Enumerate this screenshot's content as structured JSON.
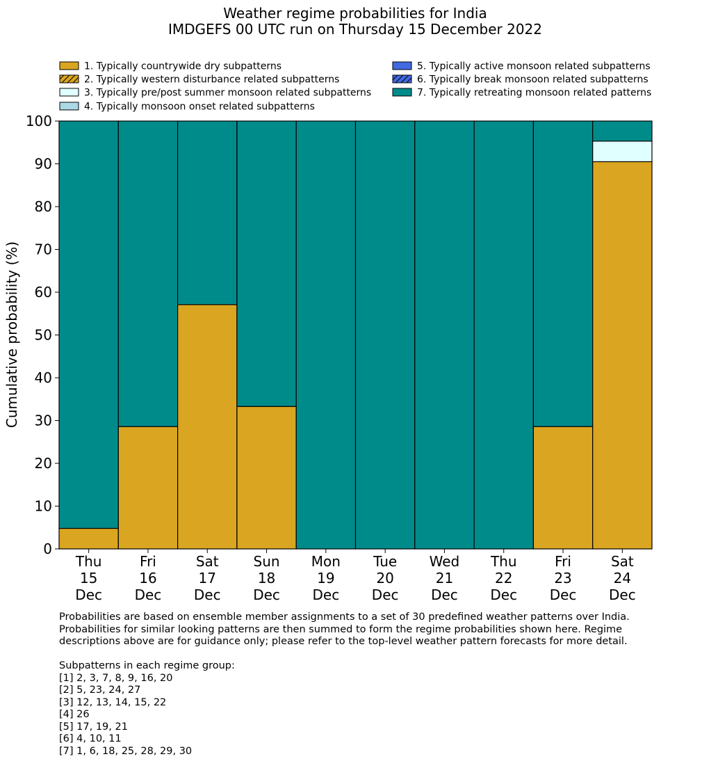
{
  "chart_data": {
    "type": "bar",
    "stacked": true,
    "title": "Weather regime probabilities for India",
    "subtitle": "IMDGEFS 00 UTC run on Thursday 15 December 2022",
    "ylabel": "Cumulative probability (%)",
    "xlabel": "",
    "ylim": [
      0,
      100
    ],
    "yticks": [
      0,
      10,
      20,
      30,
      40,
      50,
      60,
      70,
      80,
      90,
      100
    ],
    "categories": [
      [
        "Thu",
        "15",
        "Dec"
      ],
      [
        "Fri",
        "16",
        "Dec"
      ],
      [
        "Sat",
        "17",
        "Dec"
      ],
      [
        "Sun",
        "18",
        "Dec"
      ],
      [
        "Mon",
        "19",
        "Dec"
      ],
      [
        "Tue",
        "20",
        "Dec"
      ],
      [
        "Wed",
        "21",
        "Dec"
      ],
      [
        "Thu",
        "22",
        "Dec"
      ],
      [
        "Fri",
        "23",
        "Dec"
      ],
      [
        "Sat",
        "24",
        "Dec"
      ]
    ],
    "legend_position": "top",
    "series": [
      {
        "name": "1. Typically countrywide dry subpatterns",
        "color": "#daa520",
        "hatch": false,
        "values": [
          4.8,
          28.6,
          57.1,
          33.3,
          0,
          0,
          0,
          0,
          28.6,
          90.5
        ]
      },
      {
        "name": "2. Typically western disturbance related subpatterns",
        "color": "#daa520",
        "hatch": true,
        "values": [
          0,
          0,
          0,
          0,
          0,
          0,
          0,
          0,
          0,
          0
        ]
      },
      {
        "name": "3. Typically pre/post summer monsoon related subpatterns",
        "color": "#e0ffff",
        "hatch": false,
        "values": [
          0,
          0,
          0,
          0,
          0,
          0,
          0,
          0,
          0,
          4.8
        ]
      },
      {
        "name": "4. Typically monsoon onset related subpatterns",
        "color": "#add8e6",
        "hatch": false,
        "values": [
          0,
          0,
          0,
          0,
          0,
          0,
          0,
          0,
          0,
          0
        ]
      },
      {
        "name": "5. Typically active monsoon related subpatterns",
        "color": "#4169e1",
        "hatch": false,
        "values": [
          0,
          0,
          0,
          0,
          0,
          0,
          0,
          0,
          0,
          0
        ]
      },
      {
        "name": "6. Typically break monsoon related subpatterns",
        "color": "#4169e1",
        "hatch": true,
        "values": [
          0,
          0,
          0,
          0,
          0,
          0,
          0,
          0,
          0,
          0
        ]
      },
      {
        "name": "7. Typically retreating monsoon related patterns",
        "color": "#008b8b",
        "hatch": false,
        "values": [
          95.2,
          71.4,
          42.9,
          66.7,
          100,
          100,
          100,
          100,
          71.4,
          4.7
        ]
      }
    ]
  },
  "notes": {
    "line1": "Probabilities are based on ensemble member assignments to a set of 30 predefined weather patterns over India.",
    "line2": "Probabilities for similar looking patterns are then summed to form the regime probabilities shown here. Regime",
    "line3": "descriptions above are for guidance only; please refer to the top-level weather pattern forecasts for more detail.",
    "subpatterns_heading": "Subpatterns in each regime group:",
    "groups": [
      "[1] 2, 3, 7, 8, 9, 16, 20",
      "[2] 5, 23, 24, 27",
      "[3] 12, 13, 14, 15, 22",
      "[4] 26",
      "[5] 17, 19, 21",
      "[6] 4, 10, 11",
      "[7] 1, 6, 18, 25, 28, 29, 30"
    ]
  }
}
